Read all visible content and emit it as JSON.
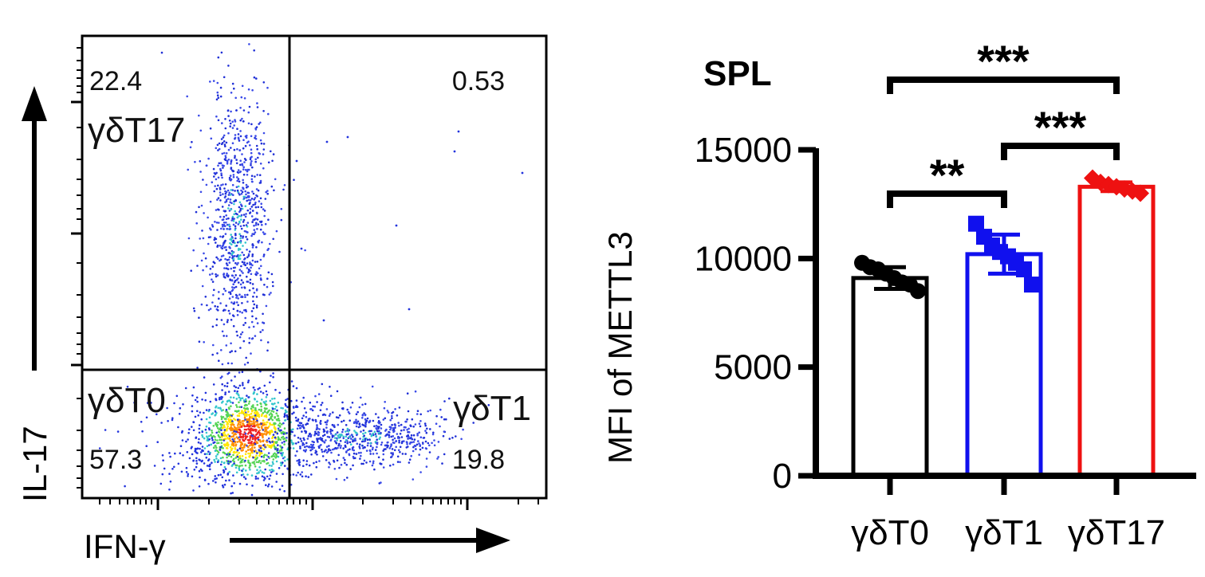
{
  "flow_panel": {
    "x_axis_label": "IFN-γ",
    "y_axis_label": "IL-17",
    "quadrants": {
      "top_left": {
        "value": "22.4",
        "name": "γδT17"
      },
      "top_right": {
        "value": "0.53",
        "name": ""
      },
      "bottom_left": {
        "value": "57.3",
        "name": "γδT0"
      },
      "bottom_right": {
        "value": "19.8",
        "name": "γδT1"
      }
    }
  },
  "chart_data": {
    "type": "bar",
    "title": "SPL",
    "ylabel": "MFI of METTL3",
    "xlabel": "",
    "categories": [
      "γδT0",
      "γδT1",
      "γδT17"
    ],
    "values": [
      9100,
      10200,
      13300
    ],
    "error_sd": [
      500,
      900,
      200
    ],
    "points": [
      [
        9800,
        9600,
        9500,
        9300,
        9100,
        8900,
        8800,
        8500
      ],
      [
        11600,
        11000,
        10600,
        10300,
        10100,
        9800,
        9500,
        8800
      ],
      [
        13700,
        13500,
        13400,
        13300,
        13200,
        13100,
        13000
      ]
    ],
    "ylim": [
      0,
      15000
    ],
    "yticks": [
      0,
      5000,
      10000,
      15000
    ],
    "bar_colors": [
      "#000000",
      "#1010ee",
      "#ee1111"
    ],
    "significance": [
      {
        "from": 0,
        "to": 1,
        "label": "**"
      },
      {
        "from": 1,
        "to": 2,
        "label": "***"
      },
      {
        "from": 0,
        "to": 2,
        "label": "***"
      }
    ]
  }
}
